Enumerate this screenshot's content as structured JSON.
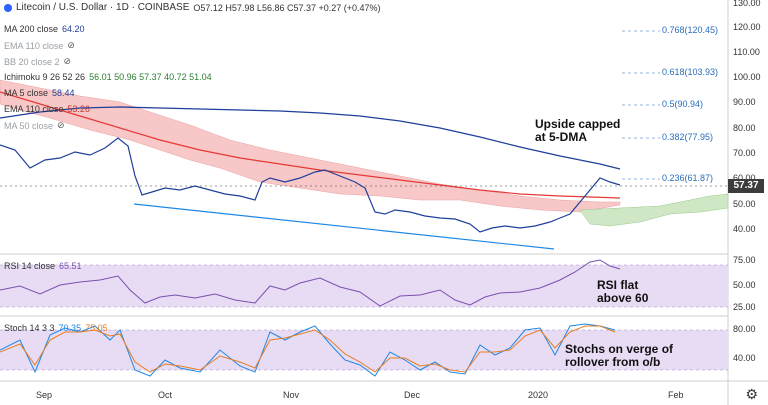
{
  "header": {
    "symbol": "Litecoin / U.S. Dollar · 1D · COINBASE",
    "ohlc": "O57.12 H57.98 L56.86 C57.37 +0.27 (+0.47%)"
  },
  "indicators": [
    {
      "label": "MA 200 close",
      "value": "64.20",
      "color": "#1f3f9a",
      "faded": false
    },
    {
      "label": "EMA 110 close",
      "value": "",
      "color": "#9aa0a6",
      "faded": true
    },
    {
      "label": "BB 20 close 2",
      "value": "",
      "color": "#9aa0a6",
      "faded": true
    },
    {
      "label": "Ichimoku 9 26 52 26",
      "value": "56.01 50.96 57.37 40.72 51.04",
      "color": "#333",
      "faded": false
    },
    {
      "label": "MA 5 close",
      "value": "58.44",
      "color": "#1f3f9a",
      "faded": false
    },
    {
      "label": "EMA 110 close",
      "value": "53.26",
      "color": "#c0392b",
      "faded": false
    },
    {
      "label": "MA 50 close",
      "value": "",
      "color": "#9aa0a6",
      "faded": true
    }
  ],
  "price_axis": [
    "130.00",
    "120.00",
    "110.00",
    "100.00",
    "90.00",
    "80.00",
    "70.00",
    "60.00",
    "50.00",
    "40.00"
  ],
  "current_price": "57.37",
  "rsi": {
    "label": "RSI 14 close",
    "value": "65.51",
    "axis": [
      "75.00",
      "50.00",
      "25.00"
    ]
  },
  "stoch": {
    "label": "Stoch 14 3 3",
    "value_k": "70.35",
    "value_d": "75.05",
    "axis": [
      "80.00",
      "40.00"
    ]
  },
  "time_axis": [
    "Sep",
    "Oct",
    "Nov",
    "Dec",
    "2020",
    "Feb"
  ],
  "annotations": {
    "upside": [
      "Upside capped",
      "at 5-DMA"
    ],
    "rsi": [
      "RSI flat",
      "above 60"
    ],
    "stoch": [
      "Stochs on verge of",
      "rollover from o/b"
    ]
  },
  "fib_levels": [
    {
      "label": "0.768(120.45)",
      "value": 120.45
    },
    {
      "label": "0.618(103.93)",
      "value": 103.93
    },
    {
      "label": "0.5(90.94)",
      "value": 90.94
    },
    {
      "label": "0.382(77.95)",
      "value": 77.95
    },
    {
      "label": "0.236(61.87)",
      "value": 61.87
    }
  ],
  "colors": {
    "ma200": "#1f3f9a",
    "ema110": "#e53935",
    "cloud_red": "#f8c7c7",
    "cloud_green": "#cfe7c5",
    "rsi_band": "#e8dcf5",
    "stoch_band": "#e8dcf5",
    "trendline": "#1e88e5",
    "candle_up": "#2e7d32",
    "candle_down": "#212121"
  }
}
